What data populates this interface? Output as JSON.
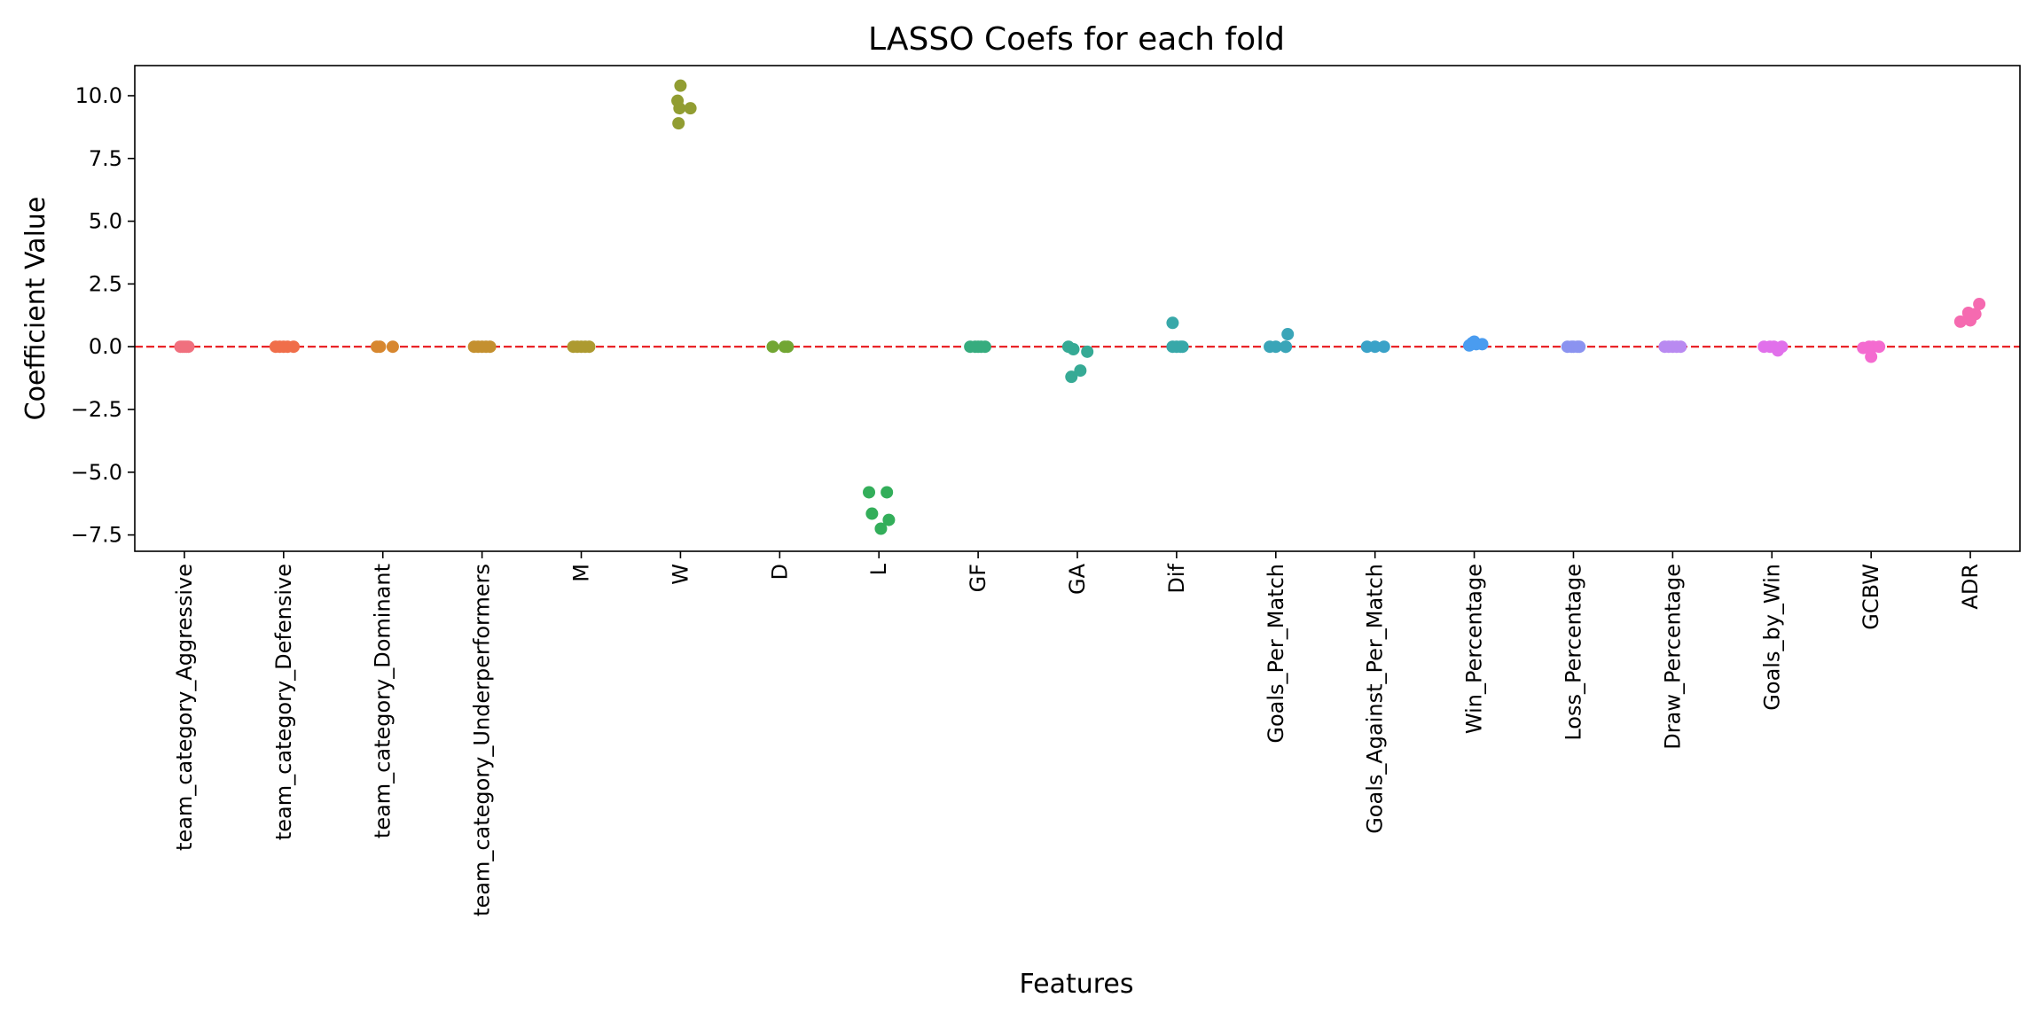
{
  "chart_data": {
    "type": "scatter",
    "title": "LASSO Coefs for each fold",
    "xlabel": "Features",
    "ylabel": "Coefficient Value",
    "ylim": [
      -8.15,
      11.2
    ],
    "yticks": [
      -7.5,
      -5.0,
      -2.5,
      0.0,
      2.5,
      5.0,
      7.5,
      10.0
    ],
    "ytick_labels": [
      "−7.5",
      "−5.0",
      "−2.5",
      "0.0",
      "2.5",
      "5.0",
      "7.5",
      "10.0"
    ],
    "reference_line": {
      "y": 0,
      "color": "#e8161a",
      "style": "dashed"
    },
    "grid": false,
    "legend": "none",
    "categories": [
      "team_category_Aggressive",
      "team_category_Defensive",
      "team_category_Dominant",
      "team_category_Underperformers",
      "M",
      "W",
      "D",
      "L",
      "GF",
      "GA",
      "Dif",
      "Goals_Per_Match",
      "Goals_Against_Per_Match",
      "Win_Percentage",
      "Loss_Percentage",
      "Draw_Percentage",
      "Goals_by_Win",
      "GCBW",
      "ADR"
    ],
    "colors": [
      "#f0707e",
      "#f06e4a",
      "#d7872f",
      "#c4902f",
      "#ad9a30",
      "#919d32",
      "#72a633",
      "#33ae5a",
      "#36ac7e",
      "#36aa95",
      "#38a8a9",
      "#3aa5b8",
      "#3aa2c8",
      "#4a9cf0",
      "#8b93f0",
      "#b98af1",
      "#e170eb",
      "#f46bd0",
      "#f56ab0"
    ],
    "points": [
      {
        "x": [
          -0.04,
          -0.02,
          0.0,
          0.02,
          0.04
        ],
        "y": [
          0,
          0,
          0,
          0,
          0
        ]
      },
      {
        "x": [
          -0.08,
          -0.04,
          0.0,
          0.04,
          0.1
        ],
        "y": [
          0,
          0,
          0,
          0,
          0
        ]
      },
      {
        "x": [
          -0.06,
          -0.03,
          0.1
        ],
        "y": [
          0,
          0,
          0
        ]
      },
      {
        "x": [
          -0.08,
          -0.04,
          0.0,
          0.04,
          0.08
        ],
        "y": [
          0,
          0,
          0,
          0,
          0
        ]
      },
      {
        "x": [
          -0.08,
          -0.04,
          0.0,
          0.04,
          0.08
        ],
        "y": [
          0,
          0,
          0,
          0,
          0
        ]
      },
      {
        "x": [
          -0.03,
          0.0,
          -0.01,
          0.1,
          -0.02
        ],
        "y": [
          9.8,
          10.4,
          9.5,
          9.5,
          8.9
        ]
      },
      {
        "x": [
          -0.07,
          0.05,
          0.08
        ],
        "y": [
          0,
          0,
          0
        ]
      },
      {
        "x": [
          -0.1,
          0.08,
          -0.07,
          0.1,
          0.02
        ],
        "y": [
          -5.8,
          -5.8,
          -6.65,
          -6.9,
          -7.25
        ]
      },
      {
        "x": [
          -0.08,
          -0.03,
          0.0,
          0.03,
          0.07
        ],
        "y": [
          0,
          0,
          0,
          0,
          0
        ]
      },
      {
        "x": [
          -0.09,
          -0.04,
          0.1,
          0.03,
          -0.06
        ],
        "y": [
          0,
          -0.1,
          -0.2,
          -0.95,
          -1.2
        ]
      },
      {
        "x": [
          -0.04,
          -0.04,
          0.0,
          0.04,
          0.06
        ],
        "y": [
          0.95,
          0,
          0,
          0,
          0
        ]
      },
      {
        "x": [
          -0.06,
          0.0,
          0.12,
          0.1,
          0.1
        ],
        "y": [
          0,
          0,
          0.5,
          0,
          0
        ]
      },
      {
        "x": [
          -0.08,
          0.0,
          0.09
        ],
        "y": [
          0,
          0,
          0
        ]
      },
      {
        "x": [
          -0.05,
          -0.02,
          0.0,
          0.02,
          0.08
        ],
        "y": [
          0.05,
          0.15,
          0.2,
          0.1,
          0.1
        ]
      },
      {
        "x": [
          -0.06,
          -0.02,
          0.0,
          0.04,
          0.06
        ],
        "y": [
          0,
          0,
          0,
          0,
          0
        ]
      },
      {
        "x": [
          -0.08,
          -0.04,
          0.0,
          0.04,
          0.08
        ],
        "y": [
          0,
          0,
          0,
          0,
          0
        ]
      },
      {
        "x": [
          -0.08,
          -0.02,
          0.02,
          0.06,
          0.1
        ],
        "y": [
          0,
          0,
          0,
          -0.15,
          0
        ]
      },
      {
        "x": [
          -0.08,
          -0.02,
          0.0,
          0.02,
          0.08
        ],
        "y": [
          -0.05,
          0,
          -0.4,
          0,
          0
        ]
      },
      {
        "x": [
          -0.1,
          -0.02,
          0.0,
          0.05,
          0.09
        ],
        "y": [
          1.0,
          1.35,
          1.05,
          1.3,
          1.7
        ]
      }
    ]
  }
}
